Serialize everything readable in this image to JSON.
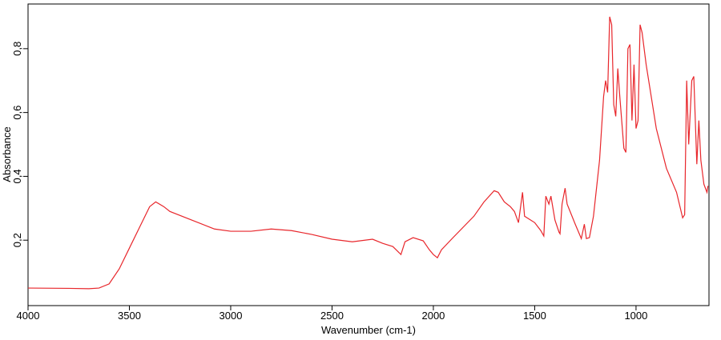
{
  "chart_data": {
    "type": "line",
    "x_label": "Wavenumber (cm-1)",
    "y_label": "Absorbance",
    "xlim": [
      4000,
      640
    ],
    "ylim": [
      -0.005,
      0.94
    ],
    "xticks": [
      4000,
      3500,
      3000,
      2500,
      2000,
      1500,
      1000
    ],
    "yticks": [
      {
        "value": 0.2,
        "label": "0,2"
      },
      {
        "value": 0.4,
        "label": "0,4"
      },
      {
        "value": 0.6,
        "label": "0,6"
      },
      {
        "value": 0.8,
        "label": "0,8"
      }
    ],
    "series": [
      {
        "color": "#e8262b",
        "x": [
          4000,
          3800,
          3700,
          3650,
          3600,
          3550,
          3500,
          3450,
          3400,
          3370,
          3330,
          3300,
          3200,
          3100,
          3080,
          3000,
          2900,
          2800,
          2700,
          2600,
          2500,
          2400,
          2300,
          2250,
          2200,
          2160,
          2140,
          2100,
          2050,
          2020,
          2000,
          1980,
          1960,
          1900,
          1800,
          1750,
          1700,
          1680,
          1650,
          1620,
          1600,
          1580,
          1560,
          1550,
          1500,
          1470,
          1455,
          1445,
          1430,
          1420,
          1400,
          1380,
          1375,
          1365,
          1350,
          1340,
          1300,
          1270,
          1255,
          1245,
          1230,
          1210,
          1180,
          1160,
          1150,
          1140,
          1130,
          1120,
          1110,
          1100,
          1090,
          1080,
          1060,
          1050,
          1040,
          1030,
          1020,
          1010,
          1000,
          990,
          980,
          970,
          950,
          900,
          850,
          800,
          770,
          760,
          750,
          740,
          725,
          715,
          700,
          690,
          680,
          665,
          650,
          645
        ],
        "values": [
          0.05,
          0.049,
          0.048,
          0.05,
          0.063,
          0.11,
          0.175,
          0.24,
          0.305,
          0.32,
          0.305,
          0.29,
          0.265,
          0.24,
          0.235,
          0.228,
          0.228,
          0.235,
          0.23,
          0.218,
          0.203,
          0.195,
          0.203,
          0.19,
          0.18,
          0.155,
          0.195,
          0.208,
          0.198,
          0.17,
          0.155,
          0.145,
          0.17,
          0.21,
          0.275,
          0.32,
          0.355,
          0.35,
          0.32,
          0.305,
          0.29,
          0.255,
          0.35,
          0.275,
          0.255,
          0.23,
          0.213,
          0.338,
          0.313,
          0.338,
          0.263,
          0.225,
          0.22,
          0.313,
          0.363,
          0.313,
          0.25,
          0.205,
          0.25,
          0.205,
          0.208,
          0.275,
          0.45,
          0.65,
          0.7,
          0.663,
          0.9,
          0.875,
          0.625,
          0.588,
          0.738,
          0.65,
          0.488,
          0.475,
          0.8,
          0.813,
          0.575,
          0.75,
          0.55,
          0.575,
          0.875,
          0.85,
          0.75,
          0.55,
          0.425,
          0.35,
          0.27,
          0.28,
          0.7,
          0.5,
          0.7,
          0.713,
          0.438,
          0.575,
          0.45,
          0.375,
          0.35,
          0.37
        ]
      }
    ]
  }
}
